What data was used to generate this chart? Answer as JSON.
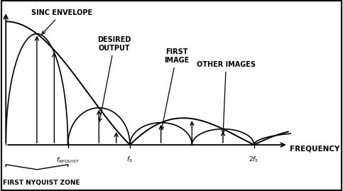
{
  "background_color": "#ffffff",
  "sinc_envelope_label": "SINC ENVELOPE",
  "desired_output_label": "DESIRED\nOUTPUT",
  "first_image_label": "FIRST\nIMAGE",
  "other_images_label": "OTHER IMAGES",
  "frequency_label": "FREQUENCY",
  "first_nyquist_zone_label": "FIRST NYQUIST ZONE",
  "xlim": [
    0,
    4.6
  ],
  "ylim": [
    -0.35,
    1.15
  ],
  "f_nyquist": 1.0,
  "f_s": 2.0,
  "f_2s": 4.0
}
